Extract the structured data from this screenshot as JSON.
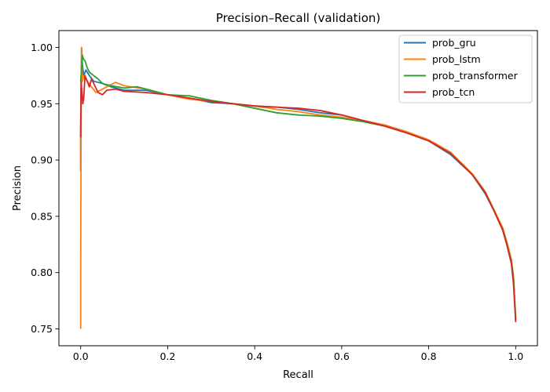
{
  "chart_data": {
    "type": "line",
    "title": "Precision–Recall (validation)",
    "xlabel": "Recall",
    "ylabel": "Precision",
    "xlim": [
      -0.05,
      1.05
    ],
    "ylim": [
      0.735,
      1.015
    ],
    "xticks": [
      0.0,
      0.2,
      0.4,
      0.6,
      0.8,
      1.0
    ],
    "xtick_labels": [
      "0.0",
      "0.2",
      "0.4",
      "0.6",
      "0.8",
      "1.0"
    ],
    "yticks": [
      0.75,
      0.8,
      0.85,
      0.9,
      0.95,
      1.0
    ],
    "ytick_labels": [
      "0.75",
      "0.80",
      "0.85",
      "0.90",
      "0.95",
      "1.00"
    ],
    "grid": false,
    "legend_position": "top-right",
    "series": [
      {
        "name": "prob_gru",
        "color": "#1f77b4",
        "x": [
          0.0,
          0.0,
          0.002,
          0.004,
          0.007,
          0.012,
          0.02,
          0.03,
          0.05,
          0.07,
          0.1,
          0.15,
          0.2,
          0.25,
          0.3,
          0.35,
          0.4,
          0.45,
          0.5,
          0.55,
          0.6,
          0.65,
          0.7,
          0.75,
          0.8,
          0.85,
          0.9,
          0.93,
          0.95,
          0.97,
          0.98,
          0.99,
          0.995,
          1.0
        ],
        "y": [
          0.89,
          0.93,
          1.0,
          0.985,
          0.975,
          0.98,
          0.975,
          0.97,
          0.968,
          0.965,
          0.962,
          0.962,
          0.958,
          0.955,
          0.951,
          0.95,
          0.948,
          0.947,
          0.945,
          0.942,
          0.94,
          0.935,
          0.931,
          0.925,
          0.917,
          0.905,
          0.887,
          0.87,
          0.855,
          0.838,
          0.825,
          0.81,
          0.795,
          0.758
        ]
      },
      {
        "name": "prob_lstm",
        "color": "#ff7f0e",
        "x": [
          0.0,
          0.0,
          0.001,
          0.002,
          0.004,
          0.008,
          0.015,
          0.025,
          0.035,
          0.045,
          0.06,
          0.08,
          0.1,
          0.15,
          0.2,
          0.25,
          0.3,
          0.35,
          0.4,
          0.45,
          0.5,
          0.55,
          0.6,
          0.65,
          0.7,
          0.75,
          0.8,
          0.85,
          0.9,
          0.93,
          0.95,
          0.97,
          0.98,
          0.99,
          0.995,
          1.0
        ],
        "y": [
          0.75,
          0.8,
          0.93,
          1.0,
          0.97,
          0.975,
          0.97,
          0.965,
          0.96,
          0.962,
          0.965,
          0.969,
          0.966,
          0.963,
          0.958,
          0.954,
          0.952,
          0.95,
          0.948,
          0.945,
          0.943,
          0.94,
          0.938,
          0.935,
          0.931,
          0.925,
          0.918,
          0.907,
          0.888,
          0.872,
          0.856,
          0.84,
          0.827,
          0.812,
          0.797,
          0.76
        ]
      },
      {
        "name": "prob_transformer",
        "color": "#2ca02c",
        "x": [
          0.0,
          0.002,
          0.004,
          0.006,
          0.01,
          0.015,
          0.02,
          0.03,
          0.04,
          0.05,
          0.07,
          0.1,
          0.13,
          0.15,
          0.2,
          0.25,
          0.3,
          0.35,
          0.4,
          0.45,
          0.5,
          0.55,
          0.6,
          0.65,
          0.7,
          0.75,
          0.8,
          0.85,
          0.9,
          0.93,
          0.95,
          0.97,
          0.98,
          0.99,
          0.995,
          1.0
        ],
        "y": [
          0.97,
          0.98,
          0.993,
          0.99,
          0.988,
          0.982,
          0.978,
          0.975,
          0.972,
          0.968,
          0.966,
          0.964,
          0.965,
          0.963,
          0.958,
          0.957,
          0.953,
          0.95,
          0.946,
          0.942,
          0.94,
          0.939,
          0.937,
          0.934,
          0.93,
          0.924,
          0.917,
          0.906,
          0.887,
          0.871,
          0.855,
          0.838,
          0.825,
          0.81,
          0.795,
          0.758
        ]
      },
      {
        "name": "prob_tcn",
        "color": "#d62728",
        "x": [
          0.0,
          0.001,
          0.003,
          0.005,
          0.007,
          0.01,
          0.015,
          0.02,
          0.025,
          0.03,
          0.04,
          0.05,
          0.06,
          0.08,
          0.1,
          0.15,
          0.2,
          0.25,
          0.3,
          0.35,
          0.4,
          0.45,
          0.5,
          0.55,
          0.6,
          0.65,
          0.7,
          0.75,
          0.8,
          0.85,
          0.9,
          0.93,
          0.95,
          0.97,
          0.98,
          0.99,
          0.995,
          1.0
        ],
        "y": [
          0.92,
          0.97,
          0.96,
          0.95,
          0.955,
          0.975,
          0.97,
          0.965,
          0.972,
          0.968,
          0.96,
          0.958,
          0.962,
          0.963,
          0.961,
          0.96,
          0.958,
          0.955,
          0.952,
          0.95,
          0.948,
          0.947,
          0.946,
          0.944,
          0.94,
          0.935,
          0.93,
          0.924,
          0.917,
          0.906,
          0.887,
          0.871,
          0.855,
          0.838,
          0.824,
          0.808,
          0.79,
          0.756
        ]
      }
    ]
  }
}
